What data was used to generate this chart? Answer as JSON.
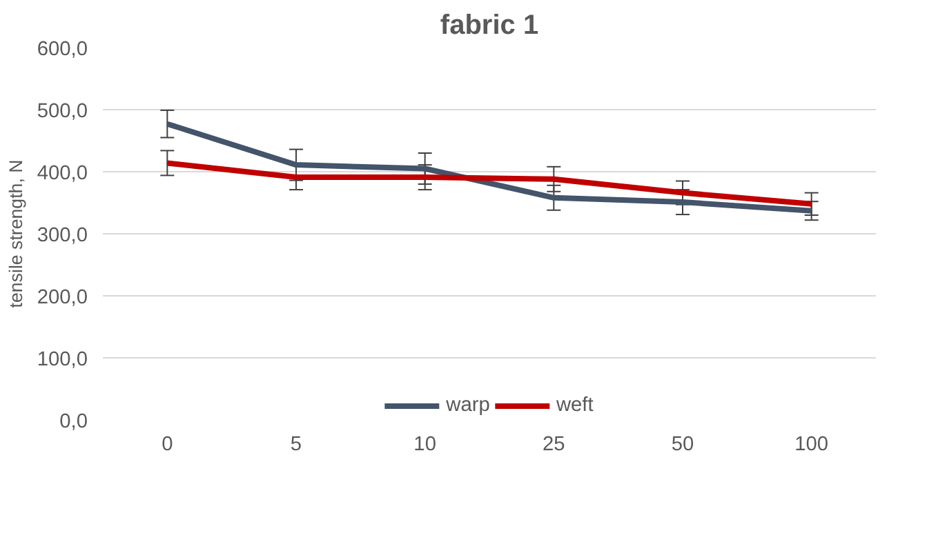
{
  "chart_data": {
    "type": "line",
    "title": "fabric 1",
    "ylabel": "tensile strength, N",
    "categories": [
      "0",
      "5",
      "10",
      "25",
      "50",
      "100"
    ],
    "series": [
      {
        "name": "warp",
        "color": "#44546a",
        "values": [
          477,
          411,
          405,
          358,
          351,
          337
        ],
        "errors": [
          22,
          25,
          25,
          20,
          20,
          15
        ]
      },
      {
        "name": "weft",
        "color": "#c00000",
        "values": [
          414,
          391,
          391,
          388,
          366,
          348
        ],
        "errors": [
          20,
          20,
          20,
          20,
          19,
          18
        ]
      }
    ],
    "ylim": [
      0,
      600
    ],
    "yticks": [
      {
        "value": 0,
        "label": "0,0"
      },
      {
        "value": 100,
        "label": "100,0"
      },
      {
        "value": 200,
        "label": "200,0"
      },
      {
        "value": 300,
        "label": "300,0"
      },
      {
        "value": 400,
        "label": "400,0"
      },
      {
        "value": 500,
        "label": "500,0"
      },
      {
        "value": 600,
        "label": "600,0"
      }
    ],
    "grid": "y",
    "legend": "bottom",
    "marker": "none",
    "line_style": "solid"
  }
}
